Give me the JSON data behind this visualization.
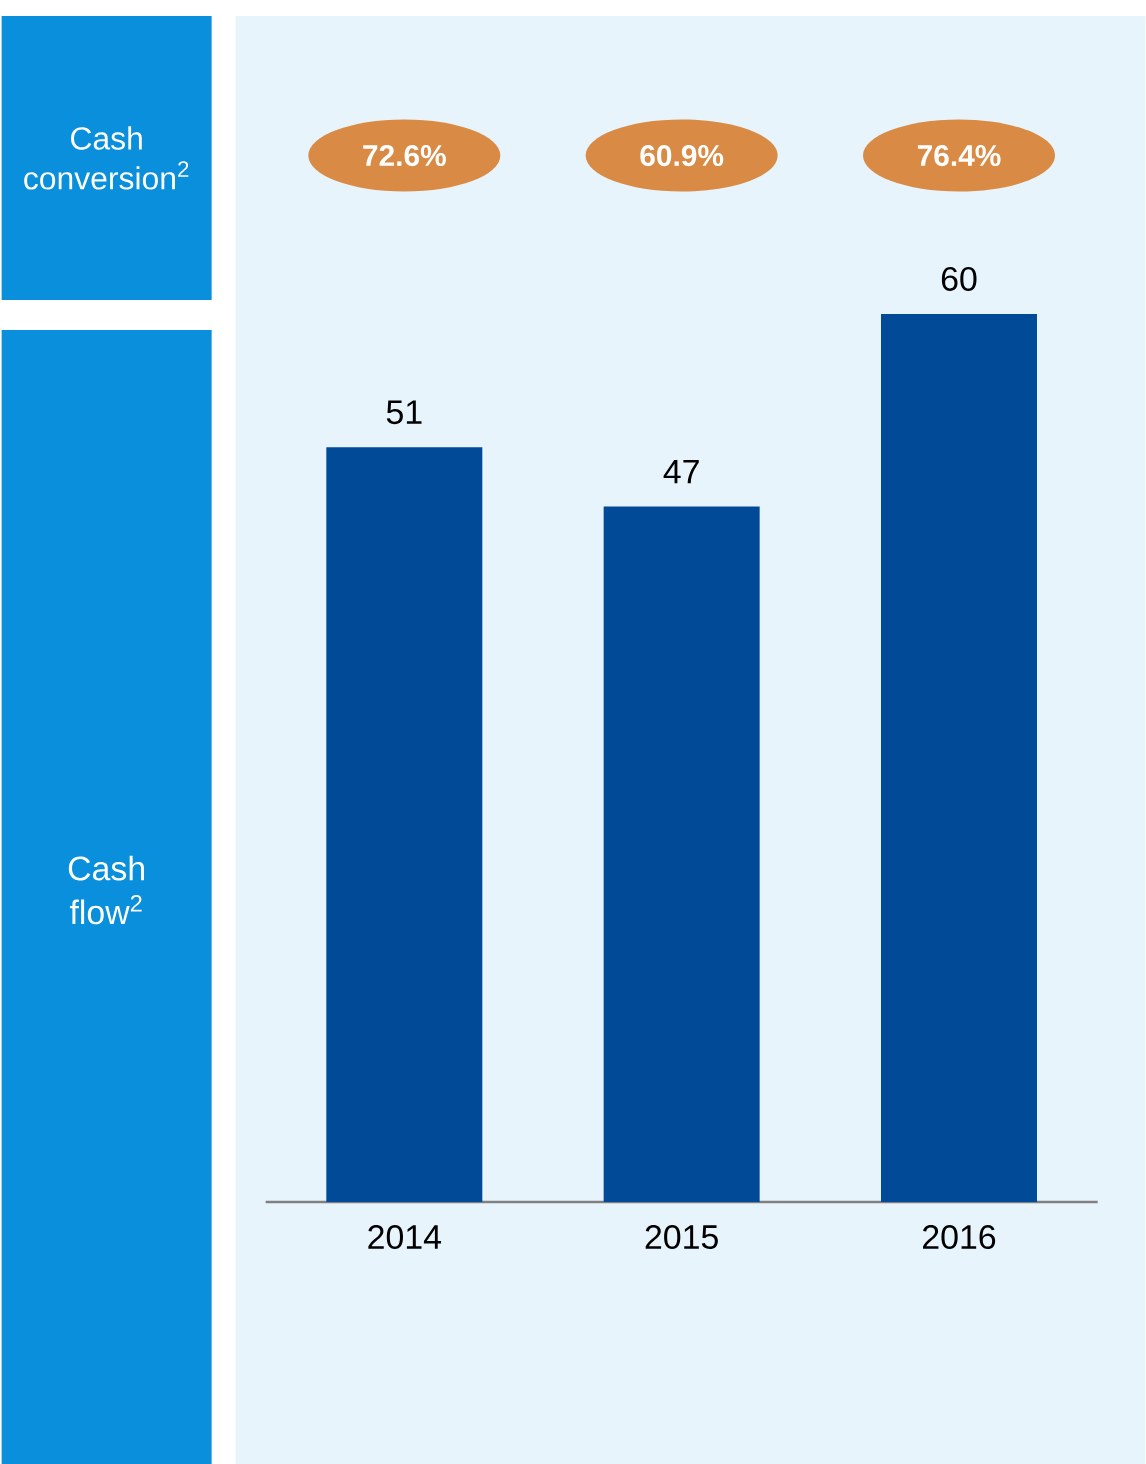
{
  "chart_data": {
    "type": "bar",
    "categories": [
      "2014",
      "2015",
      "2016"
    ],
    "values": [
      51,
      47,
      60
    ],
    "color": "#004a98",
    "data_labels": true,
    "ylabel": "Cash flow$^{2}$",
    "annotations": [
      "Cash conversion$^{2}$",
      "72.6%",
      "60.9%",
      "76.4%"
    ]
  }
}
